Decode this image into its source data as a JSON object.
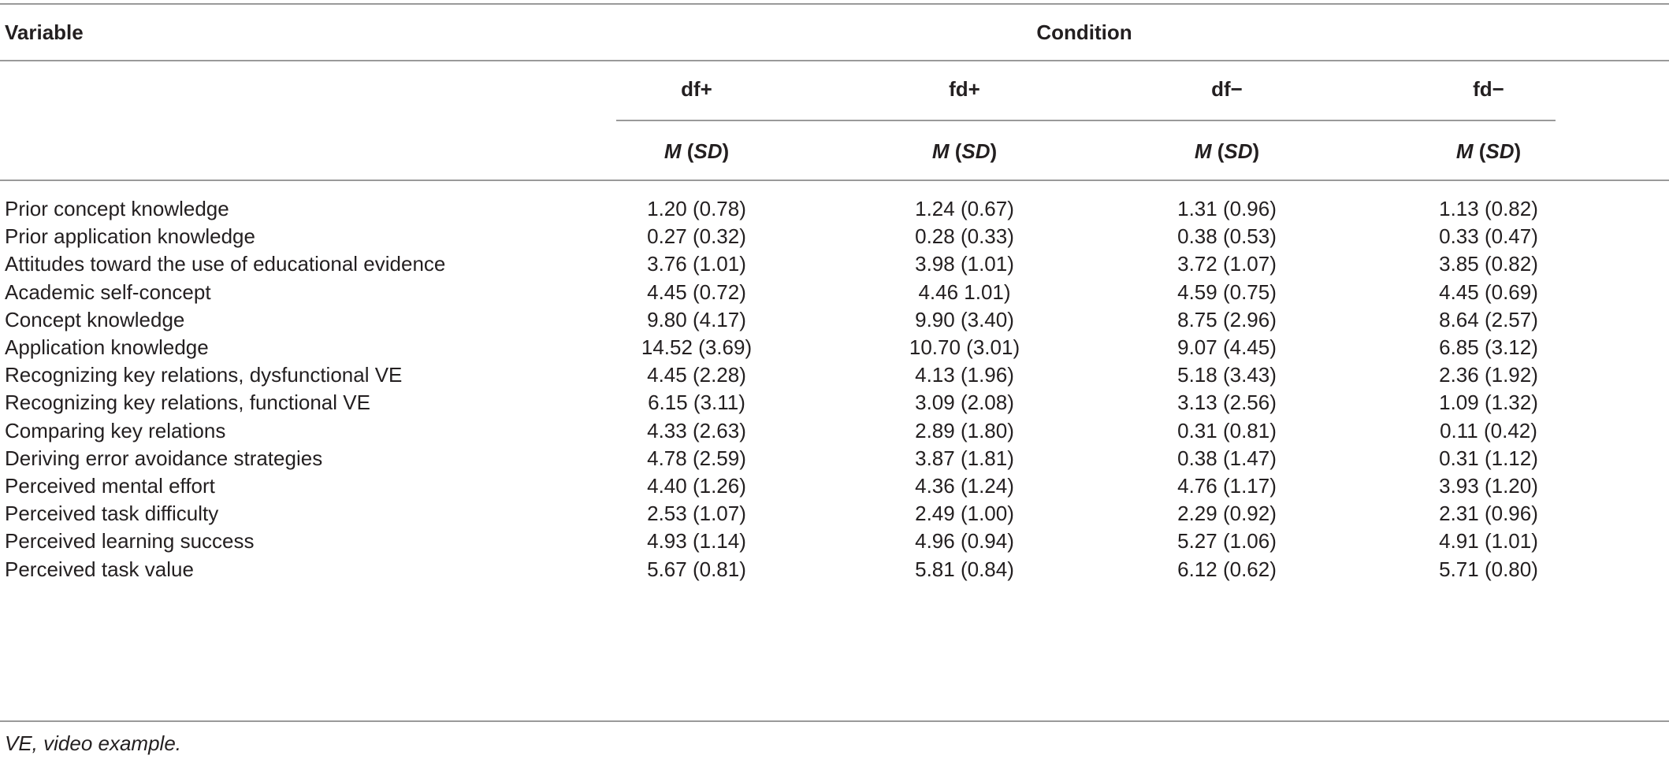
{
  "table": {
    "header": {
      "variable": "Variable",
      "condition": "Condition",
      "columns": [
        "df+",
        "fd+",
        "df−",
        "fd−"
      ],
      "stat_m": "M",
      "stat_sd": "SD"
    },
    "rows": [
      {
        "label": "Prior concept knowledge",
        "values": [
          "1.20 (0.78)",
          "1.24 (0.67)",
          "1.31 (0.96)",
          "1.13 (0.82)"
        ]
      },
      {
        "label": "Prior application knowledge",
        "values": [
          "0.27 (0.32)",
          "0.28 (0.33)",
          "0.38 (0.53)",
          "0.33 (0.47)"
        ]
      },
      {
        "label": "Attitudes toward the use of educational evidence",
        "values": [
          "3.76 (1.01)",
          "3.98 (1.01)",
          "3.72 (1.07)",
          "3.85 (0.82)"
        ]
      },
      {
        "label": "Academic self-concept",
        "values": [
          "4.45 (0.72)",
          "4.46 1.01)",
          "4.59 (0.75)",
          "4.45 (0.69)"
        ]
      },
      {
        "label": "Concept knowledge",
        "values": [
          "9.80 (4.17)",
          "9.90 (3.40)",
          "8.75 (2.96)",
          "8.64 (2.57)"
        ]
      },
      {
        "label": "Application knowledge",
        "values": [
          "14.52 (3.69)",
          "10.70 (3.01)",
          "9.07 (4.45)",
          "6.85 (3.12)"
        ]
      },
      {
        "label": "Recognizing key relations, dysfunctional VE",
        "values": [
          "4.45 (2.28)",
          "4.13 (1.96)",
          "5.18 (3.43)",
          "2.36 (1.92)"
        ]
      },
      {
        "label": "Recognizing key relations, functional VE",
        "values": [
          "6.15 (3.11)",
          "3.09 (2.08)",
          "3.13 (2.56)",
          "1.09 (1.32)"
        ]
      },
      {
        "label": "Comparing key relations",
        "values": [
          "4.33 (2.63)",
          "2.89 (1.80)",
          "0.31 (0.81)",
          "0.11 (0.42)"
        ]
      },
      {
        "label": "Deriving error avoidance strategies",
        "values": [
          "4.78 (2.59)",
          "3.87 (1.81)",
          "0.38 (1.47)",
          "0.31 (1.12)"
        ]
      },
      {
        "label": "Perceived mental effort",
        "values": [
          "4.40 (1.26)",
          "4.36 (1.24)",
          "4.76 (1.17)",
          "3.93 (1.20)"
        ]
      },
      {
        "label": "Perceived task difficulty",
        "values": [
          "2.53 (1.07)",
          "2.49 (1.00)",
          "2.29 (0.92)",
          "2.31 (0.96)"
        ]
      },
      {
        "label": "Perceived learning success",
        "values": [
          "4.93 (1.14)",
          "4.96 (0.94)",
          "5.27 (1.06)",
          "4.91 (1.01)"
        ]
      },
      {
        "label": "Perceived task value",
        "values": [
          "5.67 (0.81)",
          "5.81 (0.84)",
          "6.12 (0.62)",
          "5.71 (0.80)"
        ]
      }
    ],
    "footnote": "VE, video example."
  }
}
